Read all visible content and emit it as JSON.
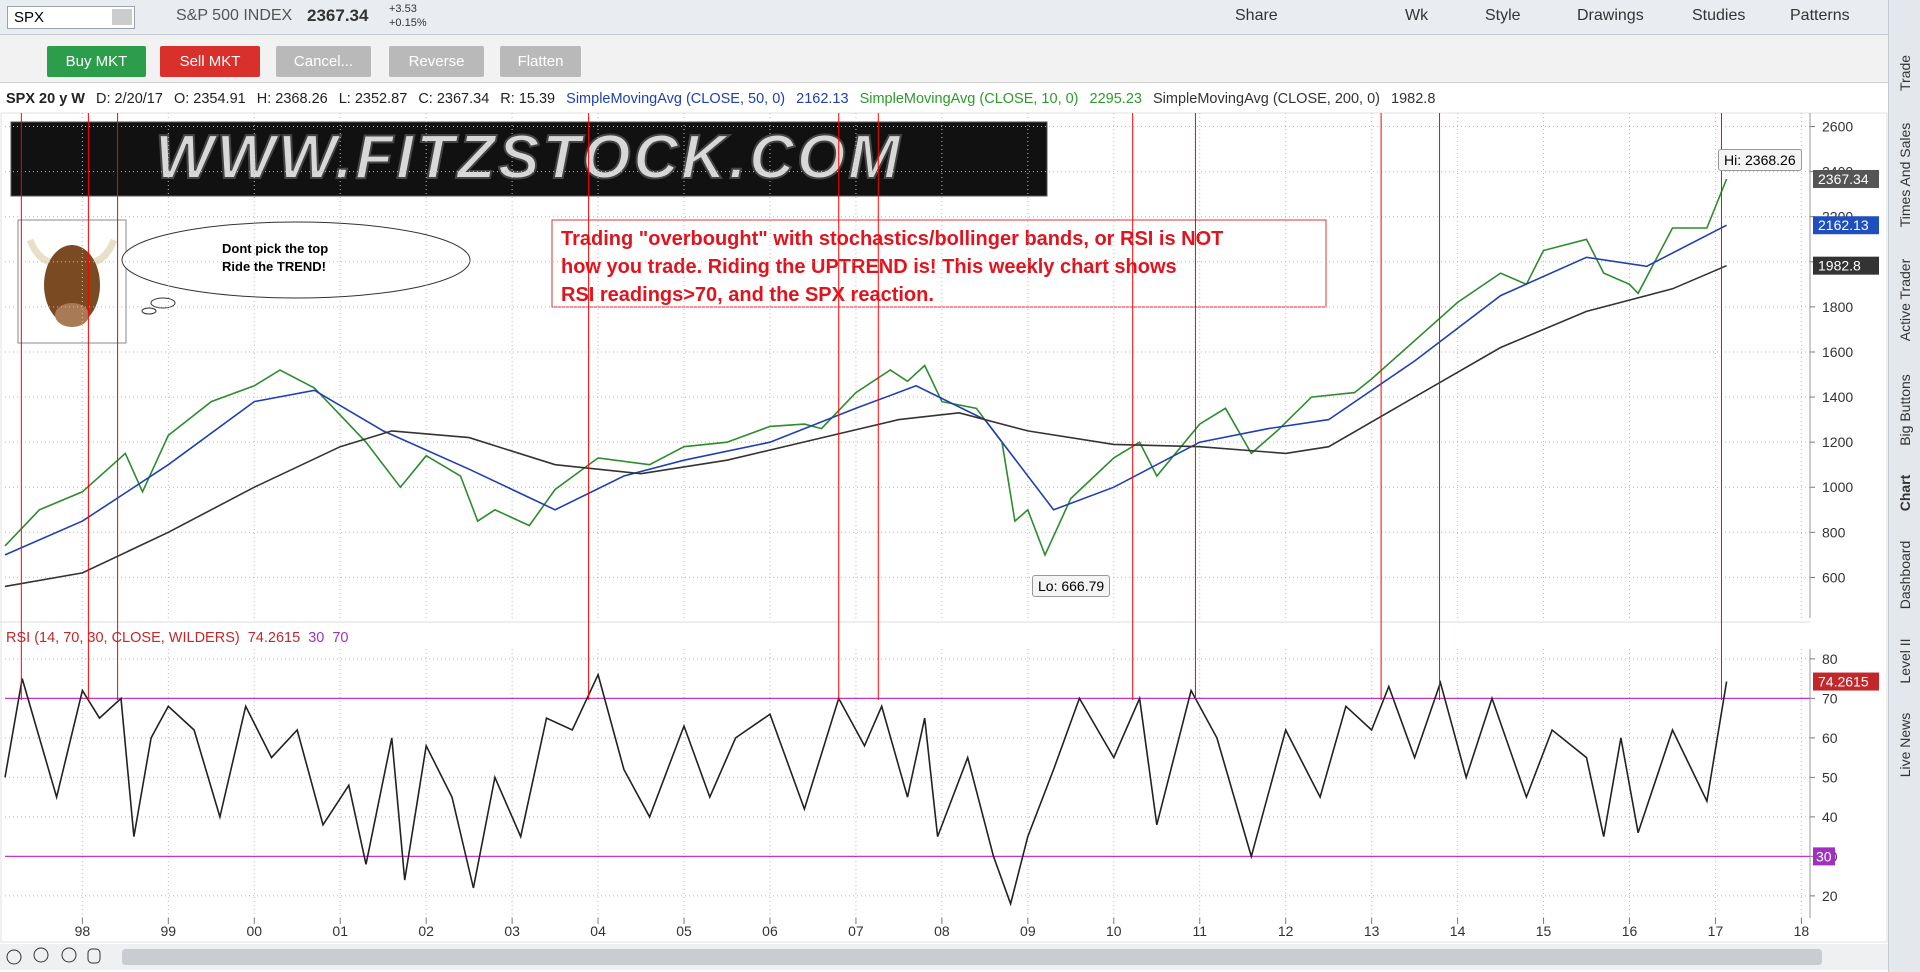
{
  "toolbar": {
    "symbol": "SPX",
    "description": "S&P 500 INDEX",
    "last": "2367.34",
    "change": "+3.53",
    "change_pct": "+0.15%",
    "buttons": [
      "Share",
      "Wk",
      "Style",
      "Drawings",
      "Studies",
      "Patterns"
    ]
  },
  "order_bar": {
    "buttons": [
      "Buy MKT",
      "Sell MKT",
      "Cancel...",
      "Reverse",
      "Flatten"
    ]
  },
  "chart_header": {
    "symbol": "SPX 20 y W",
    "date": "D: 2/20/17",
    "open": "O: 2354.91",
    "high": "H: 2368.26",
    "low": "L: 2352.87",
    "close": "C: 2367.34",
    "range": "R: 15.39",
    "sma10_name": "SimpleMovingAvg (CLOSE, 10, 0)",
    "sma10_value": "2295.23"
  },
  "logo": "WWW.FITZSTOCK.COM",
  "bubble": [
    "Dont pick  the top",
    "Ride the TREND!"
  ],
  "note": [
    "Trading \"overbought\" with stochastics/bollinger bands, or RSI is NOT",
    "how you trade.  Riding the UPTREND is!   This weekly chart shows",
    "RSI readings>70, and the SPX reaction."
  ],
  "hi_label": "Hi: 2368.26",
  "lo_label": "Lo: 666.79",
  "side_tabs": [
    "Trade",
    "Times And Sales",
    "Active Trader",
    "Big Buttons",
    "Chart",
    "Dashboard",
    "Level II",
    "Live News"
  ],
  "chart_data": [
    {
      "type": "line",
      "xlim": [
        1997.1,
        2018.1
      ],
      "ylim": [
        420,
        2660
      ],
      "xticks": [
        {
          "value": 1998,
          "label": "98"
        },
        {
          "value": 1999,
          "label": "99"
        },
        {
          "value": 2000,
          "label": "00"
        },
        {
          "value": 2001,
          "label": "01"
        },
        {
          "value": 2002,
          "label": "02"
        },
        {
          "value": 2003,
          "label": "03"
        },
        {
          "value": 2004,
          "label": "04"
        },
        {
          "value": 2005,
          "label": "05"
        },
        {
          "value": 2006,
          "label": "06"
        },
        {
          "value": 2007,
          "label": "07"
        },
        {
          "value": 2008,
          "label": "08"
        },
        {
          "value": 2009,
          "label": "09"
        },
        {
          "value": 2010,
          "label": "10"
        },
        {
          "value": 2011,
          "label": "11"
        },
        {
          "value": 2012,
          "label": "12"
        },
        {
          "value": 2013,
          "label": "13"
        },
        {
          "value": 2014,
          "label": "14"
        },
        {
          "value": 2015,
          "label": "15"
        },
        {
          "value": 2016,
          "label": "16"
        },
        {
          "value": 2017,
          "label": "17"
        },
        {
          "value": 2018,
          "label": "18"
        }
      ],
      "yticks": [
        600,
        800,
        1000,
        1200,
        1400,
        1600,
        1800,
        2000,
        2200,
        2400,
        2600
      ],
      "grid": true,
      "vlines": [
        1997.29,
        1998.07,
        1998.41,
        2003.89,
        2006.8,
        2007.26,
        2010.22,
        2010.95,
        2013.11,
        2013.79,
        2017.07
      ],
      "vline_color": "#ff0000",
      "series": [
        {
          "color": "#2e8b2e",
          "x": [
            1997.1,
            1997.5,
            1998.0,
            1998.5,
            1998.7,
            1999.0,
            1999.5,
            2000.0,
            2000.3,
            2000.7,
            2001.0,
            2001.3,
            2001.7,
            2002.0,
            2002.4,
            2002.6,
            2002.8,
            2003.2,
            2003.5,
            2004.0,
            2004.6,
            2005.0,
            2005.5,
            2006.0,
            2006.4,
            2006.6,
            2007.0,
            2007.4,
            2007.6,
            2007.8,
            2008.0,
            2008.4,
            2008.7,
            2008.85,
            2009.0,
            2009.2,
            2009.5,
            2010.0,
            2010.3,
            2010.5,
            2011.0,
            2011.3,
            2011.6,
            2011.9,
            2012.3,
            2012.8,
            2013.0,
            2013.5,
            2014.0,
            2014.5,
            2014.8,
            2015.0,
            2015.5,
            2015.7,
            2016.0,
            2016.1,
            2016.5,
            2016.9,
            2017.13
          ],
          "values": [
            740,
            900,
            980,
            1150,
            980,
            1230,
            1380,
            1450,
            1520,
            1440,
            1320,
            1200,
            1000,
            1140,
            1050,
            850,
            900,
            830,
            990,
            1130,
            1100,
            1180,
            1200,
            1270,
            1280,
            1260,
            1420,
            1520,
            1470,
            1540,
            1380,
            1350,
            1200,
            850,
            900,
            700,
            950,
            1130,
            1200,
            1050,
            1280,
            1350,
            1150,
            1250,
            1400,
            1420,
            1480,
            1650,
            1820,
            1950,
            1900,
            2050,
            2100,
            1950,
            1900,
            1860,
            2150,
            2150,
            2367.34
          ]
        },
        {
          "name": "SimpleMovingAvg (CLOSE, 50, 0)",
          "color": "#2040b0",
          "x": [
            1997.1,
            1998,
            1999,
            2000,
            2000.7,
            2001.5,
            2002.5,
            2003.5,
            2004.3,
            2005,
            2006,
            2007,
            2007.7,
            2008.5,
            2009.3,
            2010,
            2011,
            2011.8,
            2012.5,
            2013.5,
            2014.5,
            2015.5,
            2016.2,
            2017.13
          ],
          "values": [
            700,
            850,
            1100,
            1380,
            1430,
            1250,
            1080,
            900,
            1050,
            1120,
            1200,
            1350,
            1450,
            1300,
            900,
            1000,
            1200,
            1260,
            1300,
            1560,
            1850,
            2020,
            1980,
            2162.13
          ]
        },
        {
          "name": "SimpleMovingAvg (CLOSE, 200, 0)",
          "color": "#333333",
          "x": [
            1997.1,
            1998,
            1999,
            2000,
            2001,
            2001.6,
            2002.5,
            2003.5,
            2004.5,
            2005.5,
            2006.5,
            2007.5,
            2008.2,
            2009,
            2010,
            2011,
            2012,
            2012.5,
            2013.5,
            2014.5,
            2015.5,
            2016.5,
            2017.13
          ],
          "values": [
            560,
            620,
            800,
            1000,
            1180,
            1250,
            1220,
            1100,
            1060,
            1120,
            1210,
            1300,
            1330,
            1250,
            1190,
            1180,
            1150,
            1180,
            1400,
            1620,
            1780,
            1880,
            1982.8
          ]
        }
      ]
    },
    {
      "type": "line",
      "xlim": [
        1997.1,
        2018.1
      ],
      "ylim": [
        14.4,
        82.5
      ],
      "yticks": [
        20,
        30,
        40,
        50,
        60,
        70,
        80
      ],
      "grid": true,
      "levels": [
        70,
        30
      ],
      "level_color": "#cc33cc",
      "series": [
        {
          "name": "RSI (14, 70, 30, CLOSE, WILDERS)",
          "color": "#222222",
          "x": [
            1997.1,
            1997.3,
            1997.5,
            1997.7,
            1998.0,
            1998.2,
            1998.45,
            1998.6,
            1998.8,
            1999.0,
            1999.3,
            1999.6,
            1999.9,
            2000.2,
            2000.5,
            2000.8,
            2001.1,
            2001.3,
            2001.6,
            2001.75,
            2002.0,
            2002.3,
            2002.55,
            2002.8,
            2003.1,
            2003.4,
            2003.7,
            2004.0,
            2004.3,
            2004.6,
            2005.0,
            2005.3,
            2005.6,
            2006.0,
            2006.4,
            2006.8,
            2007.1,
            2007.3,
            2007.6,
            2007.8,
            2007.95,
            2008.3,
            2008.6,
            2008.8,
            2009.0,
            2009.3,
            2009.6,
            2010.0,
            2010.3,
            2010.5,
            2010.9,
            2011.2,
            2011.6,
            2012.0,
            2012.4,
            2012.7,
            2013.0,
            2013.2,
            2013.5,
            2013.8,
            2014.1,
            2014.4,
            2014.8,
            2015.1,
            2015.5,
            2015.7,
            2015.9,
            2016.1,
            2016.5,
            2016.9,
            2017.13
          ],
          "values": [
            50,
            75,
            60,
            45,
            72,
            65,
            70,
            35,
            60,
            68,
            62,
            40,
            68,
            55,
            62,
            38,
            48,
            28,
            60,
            24,
            58,
            45,
            22,
            50,
            35,
            65,
            62,
            76,
            52,
            40,
            63,
            45,
            60,
            66,
            42,
            70,
            58,
            68,
            45,
            65,
            35,
            55,
            30,
            18,
            35,
            52,
            70,
            55,
            70,
            38,
            72,
            60,
            30,
            62,
            45,
            68,
            62,
            73,
            55,
            74,
            50,
            70,
            45,
            62,
            55,
            35,
            60,
            36,
            62,
            44,
            74.2615
          ]
        }
      ]
    }
  ]
}
